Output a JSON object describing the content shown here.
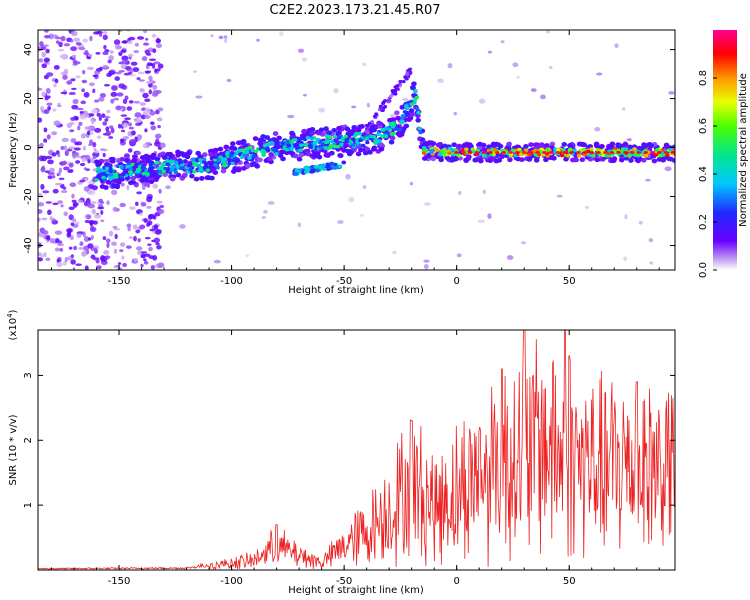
{
  "title": "C2E2.2023.173.21.45.R07",
  "chart_data": [
    {
      "type": "heatmap",
      "name": "spectrogram",
      "title": "C2E2.2023.173.21.45.R07",
      "xlabel": "Height of straight line (km)",
      "ylabel": "Frequency (Hz)",
      "xlim": [
        -186,
        97
      ],
      "ylim": [
        -50,
        48
      ],
      "xticks": [
        -150,
        -100,
        -50,
        0,
        50
      ],
      "yticks": [
        -40,
        -20,
        0,
        20,
        40
      ],
      "colorbar": {
        "label": "Normalized spectral amplitude",
        "range": [
          0.0,
          1.0
        ],
        "ticks": [
          0.0,
          0.2,
          0.4,
          0.6,
          0.8
        ]
      },
      "ridge": [
        {
          "x": -186,
          "y": -11
        },
        {
          "x": -160,
          "y": -11
        },
        {
          "x": -150,
          "y": -10
        },
        {
          "x": -130,
          "y": -8
        },
        {
          "x": -110,
          "y": -7
        },
        {
          "x": -100,
          "y": -4
        },
        {
          "x": -80,
          "y": 0
        },
        {
          "x": -60,
          "y": 2
        },
        {
          "x": -45,
          "y": 3
        },
        {
          "x": -35,
          "y": 4
        },
        {
          "x": -25,
          "y": 10
        },
        {
          "x": -18,
          "y": 22
        },
        {
          "x": -15,
          "y": -1
        },
        {
          "x": 0,
          "y": -2
        },
        {
          "x": 50,
          "y": -2
        },
        {
          "x": 97,
          "y": -2
        }
      ]
    },
    {
      "type": "line",
      "name": "snr",
      "xlabel": "Height of straight line (km)",
      "ylabel": "SNR (10 * v/v)",
      "scale_label": "(x10",
      "scale_exp": "4",
      "xlim": [
        -186,
        97
      ],
      "ylim": [
        0,
        3.7
      ],
      "xticks": [
        -150,
        -100,
        -50,
        0,
        50
      ],
      "yticks": [
        1,
        2,
        3
      ],
      "color": "#ee2222",
      "envelope": [
        {
          "x": -186,
          "y": 0.02
        },
        {
          "x": -120,
          "y": 0.03
        },
        {
          "x": -110,
          "y": 0.08
        },
        {
          "x": -90,
          "y": 0.2
        },
        {
          "x": -80,
          "y": 0.5
        },
        {
          "x": -70,
          "y": 0.3
        },
        {
          "x": -60,
          "y": 0.15
        },
        {
          "x": -50,
          "y": 0.5
        },
        {
          "x": -40,
          "y": 0.8
        },
        {
          "x": -30,
          "y": 1.2
        },
        {
          "x": -20,
          "y": 1.8
        },
        {
          "x": -10,
          "y": 1.3
        },
        {
          "x": 0,
          "y": 1.6
        },
        {
          "x": 20,
          "y": 2.3
        },
        {
          "x": 40,
          "y": 2.6
        },
        {
          "x": 60,
          "y": 2.1
        },
        {
          "x": 80,
          "y": 2.2
        },
        {
          "x": 97,
          "y": 2.1
        }
      ],
      "peaks": [
        {
          "x": -80,
          "y": 0.7
        },
        {
          "x": -20,
          "y": 2.3
        },
        {
          "x": 20,
          "y": 3.1
        },
        {
          "x": 30,
          "y": 3.7
        },
        {
          "x": 48,
          "y": 3.8
        },
        {
          "x": 50,
          "y": 3.3
        },
        {
          "x": 80,
          "y": 2.9
        }
      ]
    }
  ]
}
